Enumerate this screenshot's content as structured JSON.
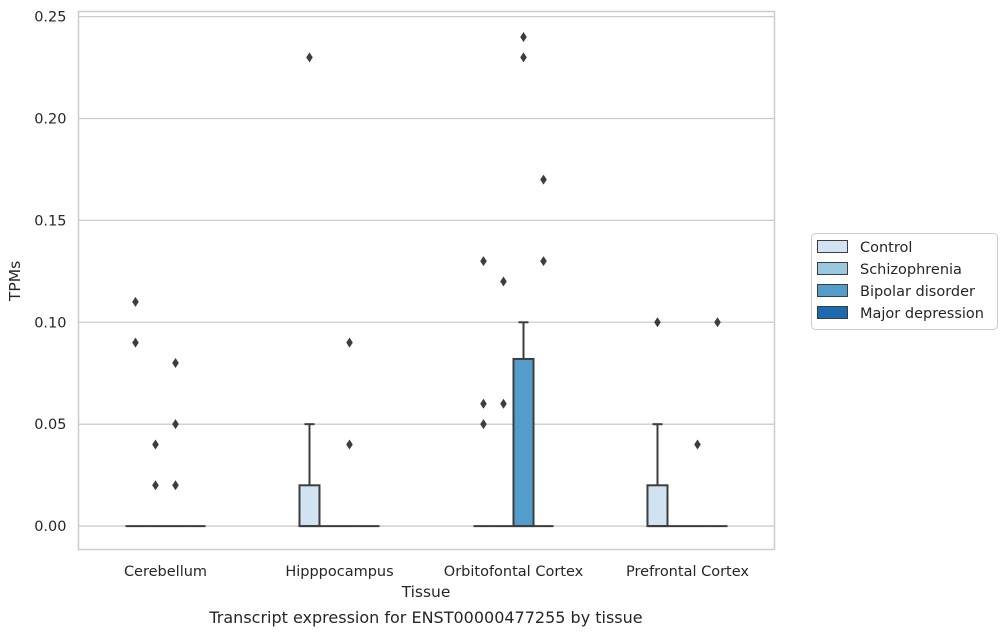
{
  "chart_data": {
    "type": "box",
    "title": "",
    "caption": "Transcript expression for ENST00000477255 by tissue",
    "xlabel": "Tissue",
    "ylabel": "TPMs",
    "ylim": [
      -0.0115,
      0.2525
    ],
    "yticks": [
      "0.00",
      "0.05",
      "0.10",
      "0.15",
      "0.20",
      "0.25"
    ],
    "ytick_values": [
      0,
      0.05,
      0.1,
      0.15,
      0.2,
      0.25
    ],
    "grid": "horizontal",
    "legend_position": "right",
    "categories": [
      "Cerebellum",
      "Hipppocampus",
      "Orbitofontal Cortex",
      "Prefrontal Cortex"
    ],
    "series": [
      {
        "name": "Control",
        "color": "#d1e2f2"
      },
      {
        "name": "Schizophrenia",
        "color": "#9ac8e0"
      },
      {
        "name": "Bipolar disorder",
        "color": "#529dcc"
      },
      {
        "name": "Major depression",
        "color": "#1c6bb0"
      }
    ],
    "boxes": [
      {
        "category": 0,
        "series": 0,
        "q1": 0,
        "median": 0,
        "q3": 0,
        "whisker_low": 0,
        "whisker_high": 0,
        "outliers": [
          0.11,
          0.09
        ]
      },
      {
        "category": 0,
        "series": 1,
        "q1": 0,
        "median": 0,
        "q3": 0,
        "whisker_low": 0,
        "whisker_high": 0,
        "outliers": [
          0.04,
          0.02
        ]
      },
      {
        "category": 0,
        "series": 2,
        "q1": 0,
        "median": 0,
        "q3": 0,
        "whisker_low": 0,
        "whisker_high": 0,
        "outliers": [
          0.08,
          0.05,
          0.02
        ]
      },
      {
        "category": 0,
        "series": 3,
        "q1": 0,
        "median": 0,
        "q3": 0,
        "whisker_low": 0,
        "whisker_high": 0,
        "outliers": []
      },
      {
        "category": 1,
        "series": 0,
        "q1": 0,
        "median": 0,
        "q3": 0.02,
        "whisker_low": 0,
        "whisker_high": 0.05,
        "outliers": [
          0.23
        ]
      },
      {
        "category": 1,
        "series": 1,
        "q1": 0,
        "median": 0,
        "q3": 0,
        "whisker_low": 0,
        "whisker_high": 0,
        "outliers": []
      },
      {
        "category": 1,
        "series": 2,
        "q1": 0,
        "median": 0,
        "q3": 0,
        "whisker_low": 0,
        "whisker_high": 0,
        "outliers": [
          0.09,
          0.04
        ]
      },
      {
        "category": 1,
        "series": 3,
        "q1": 0,
        "median": 0,
        "q3": 0,
        "whisker_low": 0,
        "whisker_high": 0,
        "outliers": []
      },
      {
        "category": 2,
        "series": 0,
        "q1": 0,
        "median": 0,
        "q3": 0,
        "whisker_low": 0,
        "whisker_high": 0,
        "outliers": [
          0.13,
          0.06,
          0.05
        ]
      },
      {
        "category": 2,
        "series": 1,
        "q1": 0,
        "median": 0,
        "q3": 0,
        "whisker_low": 0,
        "whisker_high": 0,
        "outliers": [
          0.12,
          0.06
        ]
      },
      {
        "category": 2,
        "series": 2,
        "q1": 0,
        "median": 0,
        "q3": 0.082,
        "whisker_low": 0,
        "whisker_high": 0.1,
        "outliers": [
          0.24,
          0.23
        ]
      },
      {
        "category": 2,
        "series": 3,
        "q1": 0,
        "median": 0,
        "q3": 0,
        "whisker_low": 0,
        "whisker_high": 0,
        "outliers": [
          0.17,
          0.13
        ]
      },
      {
        "category": 3,
        "series": 0,
        "q1": 0,
        "median": 0,
        "q3": 0.02,
        "whisker_low": 0,
        "whisker_high": 0.05,
        "outliers": [
          0.1
        ]
      },
      {
        "category": 3,
        "series": 1,
        "q1": 0,
        "median": 0,
        "q3": 0,
        "whisker_low": 0,
        "whisker_high": 0,
        "outliers": []
      },
      {
        "category": 3,
        "series": 2,
        "q1": 0,
        "median": 0,
        "q3": 0,
        "whisker_low": 0,
        "whisker_high": 0,
        "outliers": [
          0.04
        ]
      },
      {
        "category": 3,
        "series": 3,
        "q1": 0,
        "median": 0,
        "q3": 0,
        "whisker_low": 0,
        "whisker_high": 0,
        "outliers": [
          0.1
        ]
      }
    ]
  }
}
